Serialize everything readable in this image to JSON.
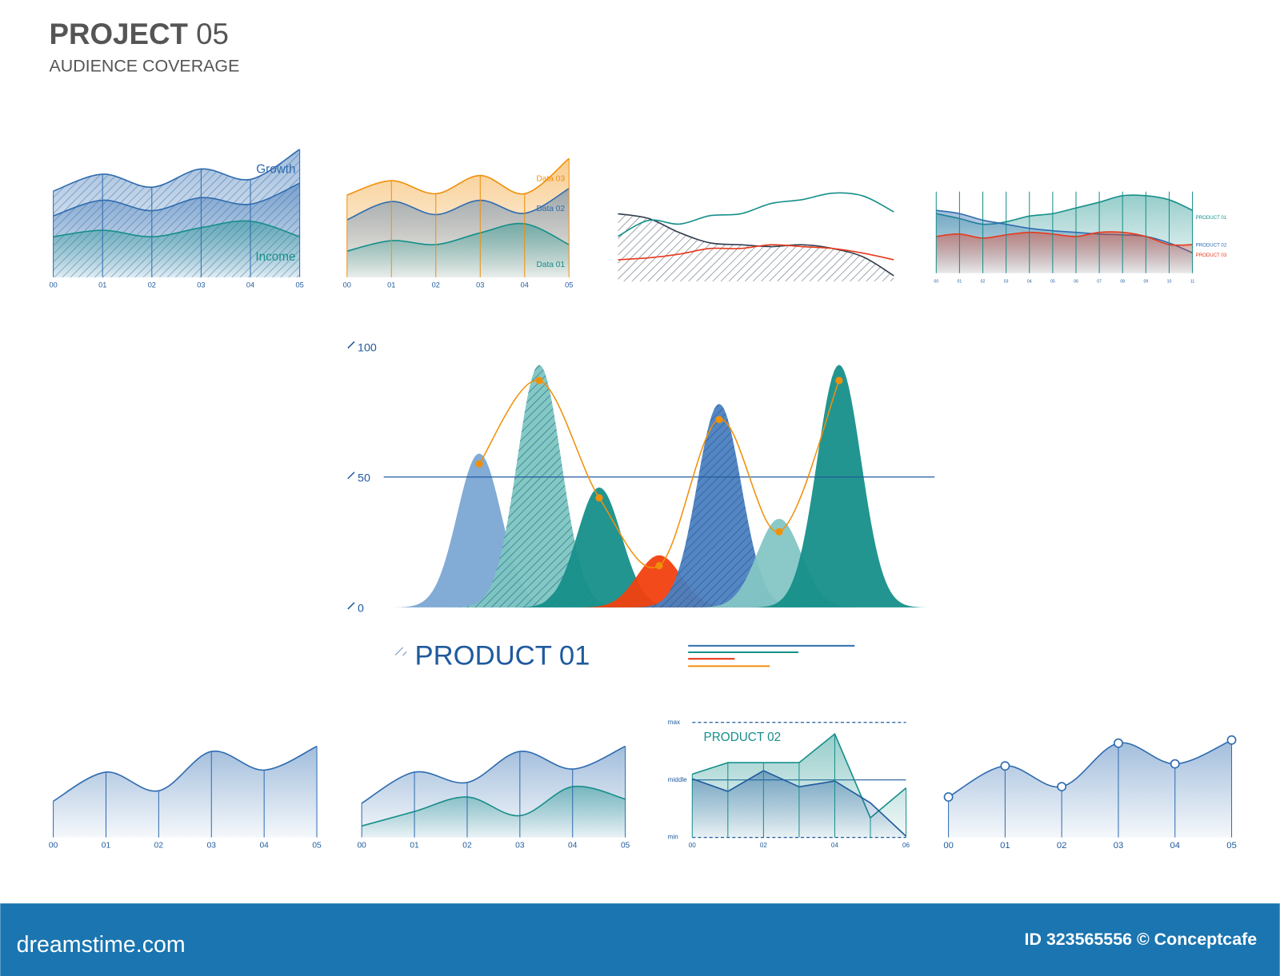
{
  "header": {
    "title": "PROJECT",
    "title_number": "05",
    "subtitle": "AUDIENCE COVERAGE"
  },
  "footer": {
    "site": "dreamstime.com",
    "credit": "ID 323565556 © Conceptcafe"
  },
  "chart_data": [
    {
      "type": "area",
      "categories": [
        "00",
        "01",
        "02",
        "03",
        "04",
        "05"
      ],
      "ylim": [
        0,
        100
      ],
      "smooth": true,
      "xgrid": true,
      "hatch": true,
      "legend": "inside",
      "series": [
        {
          "name": "Growth",
          "color": "#2f6cb0",
          "values": [
            66,
            79,
            69,
            83,
            75,
            98
          ]
        },
        {
          "color": "#2f6cb0",
          "values": [
            47,
            59,
            51,
            61,
            56,
            72
          ]
        },
        {
          "name": "Income",
          "color": "#168f8a",
          "values": [
            31,
            36,
            31,
            38,
            43,
            31
          ]
        }
      ]
    },
    {
      "type": "area",
      "categories": [
        "00",
        "01",
        "02",
        "03",
        "04",
        "05"
      ],
      "ylim": [
        0,
        100
      ],
      "smooth": true,
      "xgrid": true,
      "legend": "inside",
      "series": [
        {
          "name": "Data 03",
          "color": "#f0900a",
          "values": [
            63,
            74,
            64,
            78,
            64,
            91
          ]
        },
        {
          "name": "Data 02",
          "color": "#2f6cb0",
          "values": [
            44,
            58,
            48,
            59,
            49,
            68
          ]
        },
        {
          "name": "Data 01",
          "color": "#168f8a",
          "values": [
            20,
            28,
            25,
            34,
            41,
            25
          ]
        }
      ]
    },
    {
      "type": "line",
      "categories": [
        null,
        null,
        null,
        null,
        null,
        null,
        null,
        null,
        null,
        null
      ],
      "ylim": [
        0,
        100
      ],
      "smooth": true,
      "series": [
        {
          "color": "#33404f",
          "hatched": true,
          "values": [
            72,
            67,
            52,
            41,
            39,
            37,
            39,
            35,
            26,
            6
          ]
        },
        {
          "color": "#168f8a",
          "values": [
            48,
            65,
            61,
            70,
            72,
            83,
            87,
            94,
            91,
            74
          ]
        },
        {
          "color": "#e8391d",
          "values": [
            23,
            25,
            29,
            35,
            35,
            39,
            37,
            35,
            30,
            23
          ]
        }
      ]
    },
    {
      "type": "area",
      "categories": [
        "00",
        "01",
        "02",
        "03",
        "04",
        "05",
        "06",
        "07",
        "08",
        "09",
        "10",
        "11"
      ],
      "ylim": [
        0,
        100
      ],
      "smooth": true,
      "xgrid": true,
      "legend": "right",
      "series": [
        {
          "name": "PRODUCT 01",
          "color": "#168f8a",
          "values": [
            73,
            67,
            60,
            63,
            70,
            73,
            80,
            87,
            95,
            95,
            90,
            77
          ]
        },
        {
          "name": "PRODUCT 02",
          "color": "#2f6cb0",
          "values": [
            77,
            73,
            65,
            60,
            55,
            52,
            50,
            48,
            47,
            45,
            37,
            25
          ]
        },
        {
          "name": "PRODUCT 03",
          "color": "#e8391d",
          "values": [
            45,
            48,
            43,
            47,
            50,
            48,
            45,
            50,
            50,
            45,
            35,
            35
          ]
        }
      ]
    },
    {
      "type": "peaks",
      "title": "PRODUCT 01",
      "ylim": [
        0,
        100
      ],
      "yticks": [
        0,
        50,
        100
      ],
      "reference": 50,
      "values": [
        59,
        93,
        46,
        20,
        78,
        34,
        93
      ],
      "colors": [
        "#7ba7d3",
        "#7cc6c0",
        "#168f8a",
        "#f2400f",
        "#4a80c0",
        "#84c6c4",
        "#168f8a"
      ],
      "hatched": [
        false,
        true,
        false,
        false,
        true,
        false,
        false
      ],
      "line": {
        "color": "#f0900a",
        "values": [
          55,
          87,
          42,
          16,
          72,
          29,
          87
        ]
      }
    },
    {
      "type": "area",
      "categories": [
        "00",
        "01",
        "02",
        "03",
        "04",
        "05"
      ],
      "ylim": [
        0,
        100
      ],
      "smooth": true,
      "xgrid": true,
      "series": [
        {
          "color": "#2f6cb0",
          "values": [
            35,
            63,
            45,
            83,
            65,
            88
          ]
        }
      ]
    },
    {
      "type": "area",
      "categories": [
        "00",
        "01",
        "02",
        "03",
        "04",
        "05"
      ],
      "ylim": [
        0,
        100
      ],
      "smooth": true,
      "xgrid": true,
      "series": [
        {
          "color": "#2f6cb0",
          "values": [
            33,
            63,
            53,
            83,
            66,
            88
          ]
        },
        {
          "color": "#168f8a",
          "values": [
            11,
            25,
            39,
            21,
            49,
            37
          ]
        }
      ]
    },
    {
      "type": "area",
      "title": "PRODUCT 02",
      "categories": [
        "00",
        null,
        "02",
        null,
        "04",
        null,
        "06"
      ],
      "ylim": [
        0,
        100
      ],
      "smooth": false,
      "xgrid": true,
      "yticks": [
        {
          "value": 0,
          "label": "min"
        },
        {
          "value": 50,
          "label": "middle"
        },
        {
          "value": 100,
          "label": "max"
        }
      ],
      "series": [
        {
          "color": "#168f8a",
          "values": [
            55,
            65,
            65,
            65,
            90,
            17,
            43
          ]
        },
        {
          "color": "#1f5a9e",
          "values": [
            51,
            40,
            58,
            44,
            49,
            30,
            1
          ]
        }
      ]
    },
    {
      "type": "area",
      "categories": [
        "00",
        "01",
        "02",
        "03",
        "04",
        "05"
      ],
      "ylim": [
        0,
        100
      ],
      "smooth": true,
      "xgrid": true,
      "markers": true,
      "series": [
        {
          "color": "#2f6cb0",
          "values": [
            39,
            69,
            49,
            91,
            71,
            94
          ]
        }
      ]
    }
  ]
}
